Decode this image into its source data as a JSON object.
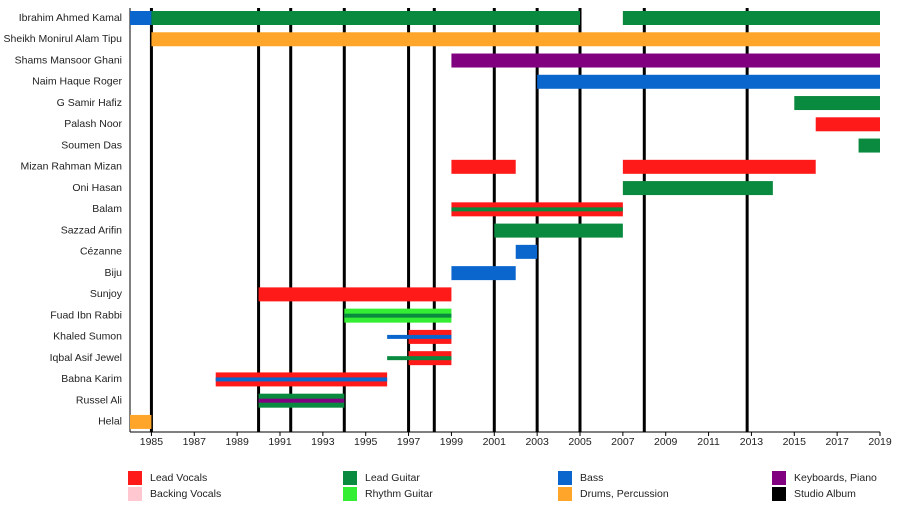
{
  "chart_data": {
    "type": "timeline",
    "xlim": [
      1984,
      2019
    ],
    "xticks": [
      1985,
      1987,
      1989,
      1991,
      1993,
      1995,
      1997,
      1999,
      2001,
      2003,
      2005,
      2007,
      2009,
      2011,
      2013,
      2015,
      2017,
      2019
    ],
    "roles": [
      {
        "name": "Lead Vocals",
        "color": "#ff1a1a"
      },
      {
        "name": "Backing Vocals",
        "color": "#ffc8d0"
      },
      {
        "name": "Lead Guitar",
        "color": "#0a8a3f"
      },
      {
        "name": "Rhythm Guitar",
        "color": "#33ee33"
      },
      {
        "name": "Bass",
        "color": "#0a66cc"
      },
      {
        "name": "Drums, Percussion",
        "color": "#ffa52a"
      },
      {
        "name": "Keyboards, Piano",
        "color": "#800080"
      }
    ],
    "album_label": "Studio Album",
    "album_color": "#000000",
    "albums": [
      1985,
      1990,
      1991.5,
      1994,
      1997,
      1998.2,
      2001,
      2003,
      2005,
      2008,
      2012.8
    ],
    "members": [
      {
        "name": "Ibrahim Ahmed Kamal",
        "bars": [
          {
            "role": 4,
            "start": 1984,
            "end": 1985
          },
          {
            "role": 2,
            "start": 1985,
            "end": 2005
          },
          {
            "role": 2,
            "start": 2007,
            "end": 2019
          }
        ],
        "stripes": []
      },
      {
        "name": "Sheikh Monirul Alam Tipu",
        "bars": [
          {
            "role": 5,
            "start": 1985,
            "end": 2019
          }
        ],
        "stripes": []
      },
      {
        "name": "Shams Mansoor Ghani",
        "bars": [
          {
            "role": 6,
            "start": 1999,
            "end": 2019
          }
        ],
        "stripes": []
      },
      {
        "name": "Naim Haque Roger",
        "bars": [
          {
            "role": 4,
            "start": 2003,
            "end": 2019
          }
        ],
        "stripes": []
      },
      {
        "name": "G Samir Hafiz",
        "bars": [
          {
            "role": 2,
            "start": 2015,
            "end": 2019
          }
        ],
        "stripes": []
      },
      {
        "name": "Palash Noor",
        "bars": [
          {
            "role": 0,
            "start": 2016,
            "end": 2019
          }
        ],
        "stripes": []
      },
      {
        "name": "Soumen Das",
        "bars": [
          {
            "role": 2,
            "start": 2018,
            "end": 2019
          }
        ],
        "stripes": []
      },
      {
        "name": "Mizan Rahman Mizan",
        "bars": [
          {
            "role": 0,
            "start": 1999,
            "end": 2002
          },
          {
            "role": 0,
            "start": 2007,
            "end": 2016
          }
        ],
        "stripes": []
      },
      {
        "name": "Oni Hasan",
        "bars": [
          {
            "role": 2,
            "start": 2007,
            "end": 2014
          }
        ],
        "stripes": []
      },
      {
        "name": "Balam",
        "bars": [
          {
            "role": 0,
            "start": 1999,
            "end": 2007
          }
        ],
        "stripes": [
          {
            "role": 2,
            "start": 1999,
            "end": 2007
          }
        ]
      },
      {
        "name": "Sazzad Arifin",
        "bars": [
          {
            "role": 2,
            "start": 2001,
            "end": 2007
          }
        ],
        "stripes": []
      },
      {
        "name": "Cézanne",
        "bars": [
          {
            "role": 4,
            "start": 2002,
            "end": 2003
          }
        ],
        "stripes": []
      },
      {
        "name": "Biju",
        "bars": [
          {
            "role": 4,
            "start": 1999,
            "end": 2002
          }
        ],
        "stripes": []
      },
      {
        "name": "Sunjoy",
        "bars": [
          {
            "role": 0,
            "start": 1990,
            "end": 1999
          }
        ],
        "stripes": []
      },
      {
        "name": "Fuad Ibn Rabbi",
        "bars": [
          {
            "role": 3,
            "start": 1994,
            "end": 1999
          }
        ],
        "stripes": [
          {
            "role": 2,
            "start": 1994,
            "end": 1999
          }
        ]
      },
      {
        "name": "Khaled Sumon",
        "bars": [
          {
            "role": 0,
            "start": 1997,
            "end": 1999
          }
        ],
        "stripes": [
          {
            "role": 4,
            "start": 1996,
            "end": 1999
          }
        ]
      },
      {
        "name": "Iqbal Asif Jewel",
        "bars": [
          {
            "role": 0,
            "start": 1997,
            "end": 1999
          }
        ],
        "stripes": [
          {
            "role": 2,
            "start": 1996,
            "end": 1999
          }
        ]
      },
      {
        "name": "Babna Karim",
        "bars": [
          {
            "role": 0,
            "start": 1988,
            "end": 1996
          }
        ],
        "stripes": [
          {
            "role": 4,
            "start": 1988,
            "end": 1996
          }
        ]
      },
      {
        "name": "Russel Ali",
        "bars": [
          {
            "role": 2,
            "start": 1990,
            "end": 1994
          }
        ],
        "stripes": [
          {
            "role": 6,
            "start": 1990,
            "end": 1994
          }
        ]
      },
      {
        "name": "Helal",
        "bars": [
          {
            "role": 5,
            "start": 1984,
            "end": 1985
          }
        ],
        "stripes": []
      }
    ]
  }
}
